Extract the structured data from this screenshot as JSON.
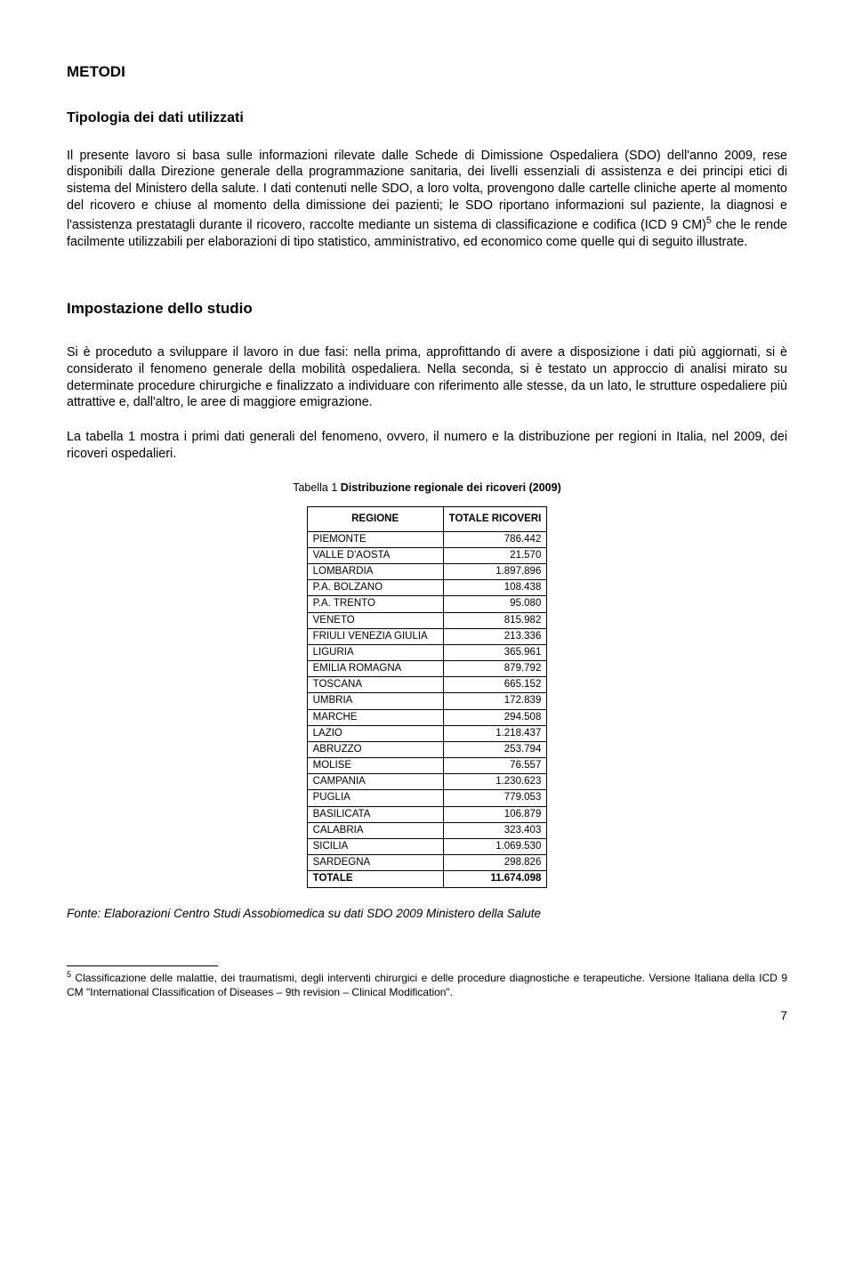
{
  "headings": {
    "h1": "METODI",
    "h2a": "Tipologia dei dati utilizzati",
    "h2b": "Impostazione dello studio"
  },
  "paragraphs": {
    "p1a": "Il presente lavoro si basa sulle informazioni rilevate dalle Schede di Dimissione Ospedaliera (SDO) dell'anno 2009, rese disponibili dalla Direzione generale della programmazione sanitaria, dei livelli essenziali di assistenza e dei principi etici di sistema del Ministero della salute. I dati contenuti nelle SDO, a loro volta, provengono dalle cartelle cliniche aperte al momento del ricovero e chiuse al momento della dimissione dei pazienti; le SDO riportano informazioni sul paziente, la diagnosi e l'assistenza prestatagli durante il ricovero, raccolte mediante un sistema di classificazione e codifica (ICD 9 CM)",
    "p1sup": "5",
    "p1b": " che le rende facilmente utilizzabili per elaborazioni di tipo statistico, amministrativo, ed economico come quelle qui di seguito illustrate.",
    "p2": "Si è proceduto a sviluppare il lavoro in due fasi: nella prima, approfittando di avere a disposizione i dati più aggiornati, si è considerato il fenomeno generale della mobilità ospedaliera. Nella seconda, si è testato un approccio di analisi mirato su determinate procedure chirurgiche e finalizzato a individuare con riferimento alle stesse, da un lato, le strutture ospedaliere più attrattive e, dall'altro, le aree di maggiore emigrazione.",
    "p3": "La tabella 1 mostra i primi dati generali del fenomeno, ovvero, il numero e la distribuzione per regioni in Italia, nel 2009, dei ricoveri ospedalieri."
  },
  "table": {
    "caption_prefix": "Tabella 1 ",
    "caption_bold": "Distribuzione regionale dei ricoveri (2009)",
    "col1": "REGIONE",
    "col2": "TOTALE RICOVERI",
    "rows": [
      {
        "r": "PIEMONTE",
        "v": "786.442"
      },
      {
        "r": "VALLE D'AOSTA",
        "v": "21.570"
      },
      {
        "r": "LOMBARDIA",
        "v": "1.897.896"
      },
      {
        "r": "P.A. BOLZANO",
        "v": "108.438"
      },
      {
        "r": "P.A. TRENTO",
        "v": "95.080"
      },
      {
        "r": "VENETO",
        "v": "815.982"
      },
      {
        "r": "FRIULI VENEZIA GIULIA",
        "v": "213.336"
      },
      {
        "r": "LIGURIA",
        "v": "365.961"
      },
      {
        "r": "EMILIA ROMAGNA",
        "v": "879.792"
      },
      {
        "r": "TOSCANA",
        "v": "665.152"
      },
      {
        "r": "UMBRIA",
        "v": "172.839"
      },
      {
        "r": "MARCHE",
        "v": "294.508"
      },
      {
        "r": "LAZIO",
        "v": "1.218.437"
      },
      {
        "r": "ABRUZZO",
        "v": "253.794"
      },
      {
        "r": "MOLISE",
        "v": "76.557"
      },
      {
        "r": "CAMPANIA",
        "v": "1.230.623"
      },
      {
        "r": "PUGLIA",
        "v": "779.053"
      },
      {
        "r": "BASILICATA",
        "v": "106.879"
      },
      {
        "r": "CALABRIA",
        "v": "323.403"
      },
      {
        "r": "SICILIA",
        "v": "1.069.530"
      },
      {
        "r": "SARDEGNA",
        "v": "298.826"
      }
    ],
    "total": {
      "r": "TOTALE",
      "v": "11.674.098"
    }
  },
  "source": "Fonte: Elaborazioni Centro Studi Assobiomedica su dati SDO 2009 Ministero della Salute",
  "footnote": {
    "sup": "5",
    "text": " Classificazione delle malattie, dei traumatismi, degli interventi chirurgici e delle procedure diagnostiche e terapeutiche. Versione Italiana della ICD 9 CM \"International Classification of Diseases – 9th revision – Clinical Modification\"."
  },
  "page_number": "7"
}
